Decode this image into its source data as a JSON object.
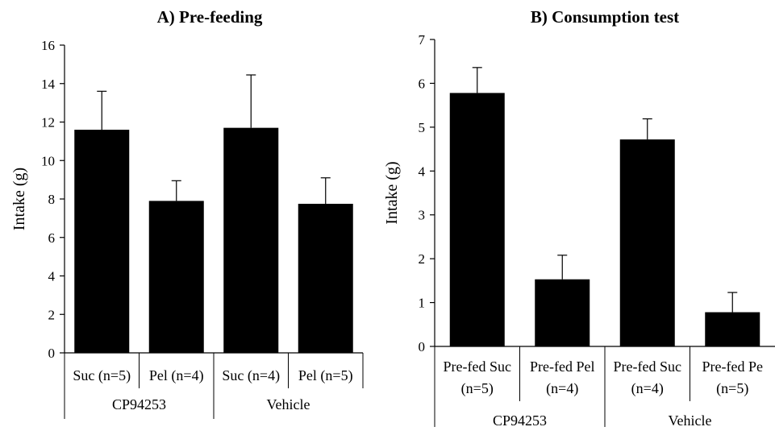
{
  "chart_data": [
    {
      "type": "bar",
      "title": "A) Pre-feeding",
      "ylabel": "Intake (g)",
      "xlabel": "",
      "ylim": [
        0,
        16
      ],
      "yticks": [
        "0",
        "2",
        "4",
        "6",
        "8",
        "10",
        "12",
        "14",
        "16"
      ],
      "categories": [
        {
          "lines": [
            "Suc (n=5)"
          ]
        },
        {
          "lines": [
            "Pel (n=4)"
          ]
        },
        {
          "lines": [
            "Suc (n=4)"
          ]
        },
        {
          "lines": [
            "Pel (n=5)"
          ]
        }
      ],
      "groups": [
        "CP94253",
        "Vehicle"
      ],
      "values": [
        11.6,
        7.9,
        11.7,
        7.75
      ],
      "errors": [
        2.0,
        1.05,
        2.75,
        1.35
      ],
      "bar_color": "#000000",
      "grid": false,
      "legend": "none"
    },
    {
      "type": "bar",
      "title": "B) Consumption test",
      "ylabel": "Intake (g)",
      "xlabel": "",
      "ylim": [
        0,
        7
      ],
      "yticks": [
        "0",
        "1",
        "2",
        "3",
        "4",
        "5",
        "6",
        "7"
      ],
      "categories": [
        {
          "lines": [
            "Pre-fed Suc",
            "(n=5)"
          ]
        },
        {
          "lines": [
            "Pre-fed Pel",
            "(n=4)"
          ]
        },
        {
          "lines": [
            "Pre-fed Suc",
            "(n=4)"
          ]
        },
        {
          "lines": [
            "Pre-fed Pe",
            "(n=5)"
          ]
        }
      ],
      "groups": [
        "CP94253",
        "Vehicle"
      ],
      "values": [
        5.78,
        1.53,
        4.72,
        0.78
      ],
      "errors": [
        0.58,
        0.55,
        0.47,
        0.45
      ],
      "bar_color": "#000000",
      "grid": false,
      "legend": "none"
    }
  ]
}
